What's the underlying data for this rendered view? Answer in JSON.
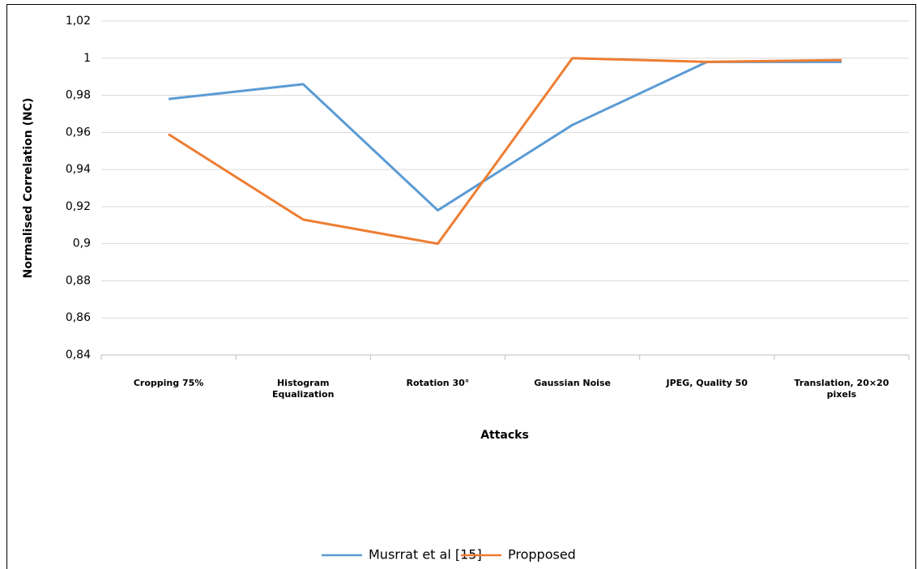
{
  "chart_data": {
    "type": "line",
    "y_label": "Normalised Correlation (NC)",
    "x_label": "Attacks",
    "categories": [
      "Cropping 75%",
      "Histogram Equalization",
      "Rotation 30°",
      "Gaussian Noise",
      "JPEG, Quality 50",
      "Translation, 20×20 pixels"
    ],
    "series": [
      {
        "name": "Musrrat et al [15]",
        "color": "#5b9bd5",
        "values": [
          0.978,
          0.986,
          0.918,
          0.964,
          0.998,
          0.998
        ]
      },
      {
        "name": "Propposed",
        "color": "#ed7d31",
        "values": [
          0.959,
          0.913,
          0.9,
          1.0,
          0.998,
          0.999
        ]
      }
    ],
    "ylim": [
      0.84,
      1.02
    ],
    "yticks": [
      {
        "value": 0.84,
        "label": "0,84"
      },
      {
        "value": 0.86,
        "label": "0,86"
      },
      {
        "value": 0.88,
        "label": "0,88"
      },
      {
        "value": 0.9,
        "label": "0,9"
      },
      {
        "value": 0.92,
        "label": "0,92"
      },
      {
        "value": 0.94,
        "label": "0,94"
      },
      {
        "value": 0.96,
        "label": "0,96"
      },
      {
        "value": 0.98,
        "label": "0,98"
      },
      1,
      {
        "value": 1.02,
        "label": "1,02"
      }
    ],
    "grid": true,
    "legend": "bottom"
  }
}
